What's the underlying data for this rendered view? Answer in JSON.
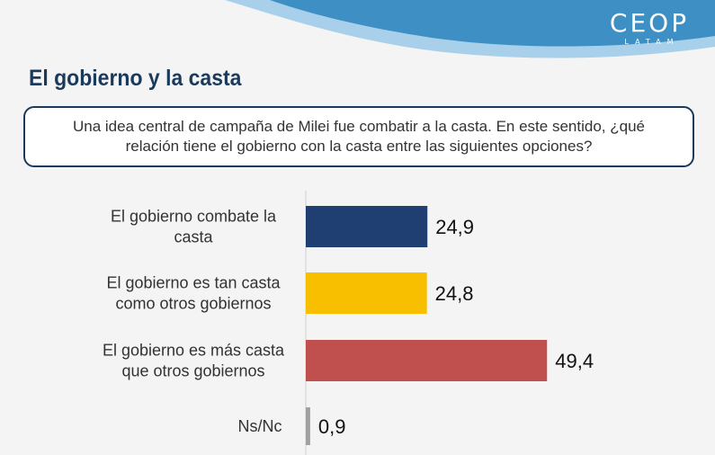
{
  "header": {
    "logo_main": "CEOP",
    "logo_sub": "LATAM",
    "title": "El gobierno y la casta"
  },
  "question": "Una idea central de campaña de Milei fue combatir a la casta. En este sentido, ¿qué relación tiene el gobierno con la casta entre las siguientes opciones?",
  "colors": {
    "header_wave": "#3d8fc4",
    "title": "#1a3a5c",
    "box_border": "#1a3a5c"
  },
  "chart_data": {
    "type": "bar",
    "orientation": "horizontal",
    "title": "",
    "xlabel": "",
    "ylabel": "",
    "xlim": [
      0,
      60
    ],
    "grid": false,
    "legend": "none",
    "categories": [
      [
        "El gobierno combate la",
        "casta"
      ],
      [
        "El gobierno es tan casta",
        "como otros gobiernos"
      ],
      [
        "El gobierno es más casta",
        "que otros gobiernos"
      ],
      [
        "Ns/Nc"
      ]
    ],
    "values": [
      24.9,
      24.8,
      49.4,
      0.9
    ],
    "value_labels": [
      "24,9",
      "24,8",
      "49,4",
      "0,9"
    ],
    "bar_colors": [
      "#1f3f73",
      "#f8bf00",
      "#c0504d",
      "#a0a0a0"
    ]
  }
}
